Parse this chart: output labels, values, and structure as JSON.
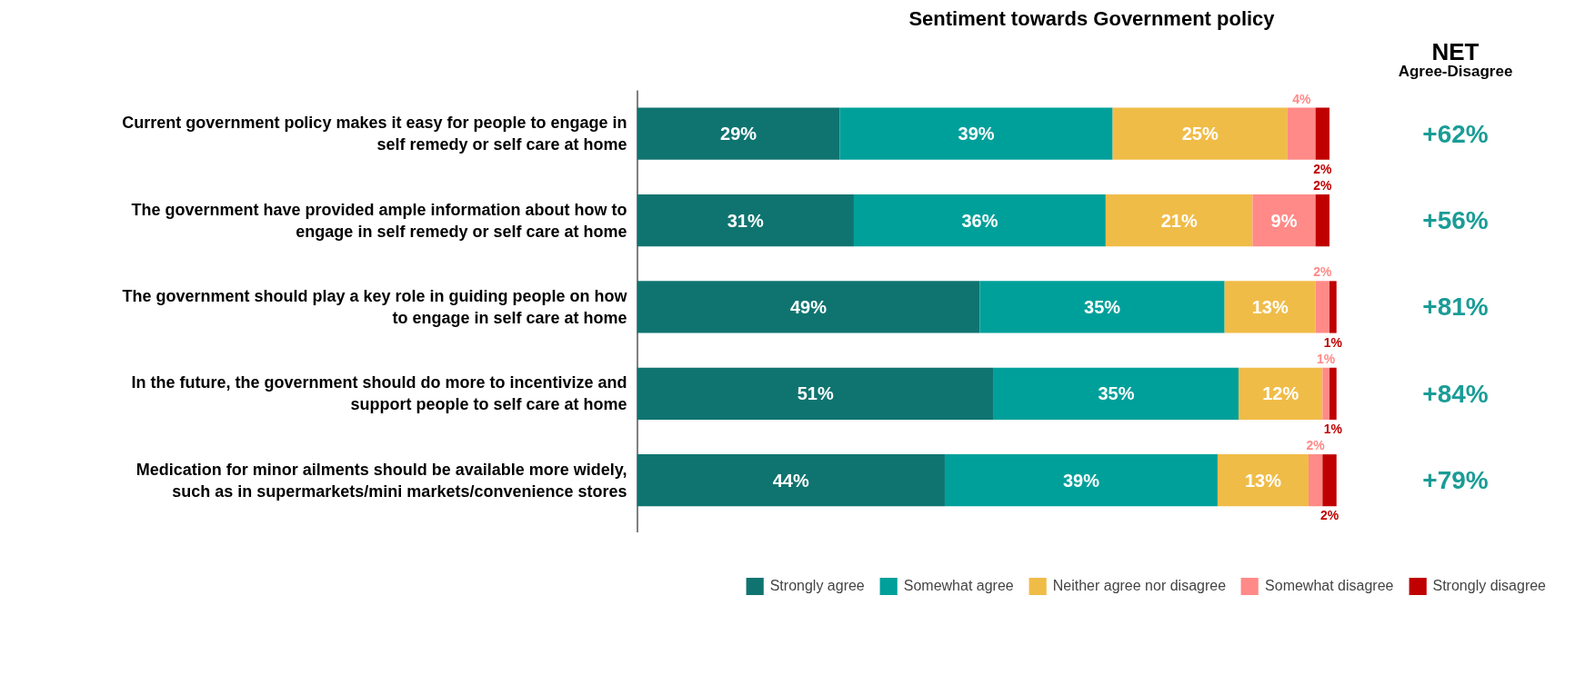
{
  "chart_data": {
    "type": "bar",
    "orientation": "horizontal",
    "stacked": true,
    "title": "Sentiment towards Government policy",
    "categories": [
      "Current government policy makes it easy for people to engage in self remedy or self care at home",
      "The government have provided ample information about how to engage in self remedy or self care at home",
      "The government should play a key role in guiding people on how to engage in self care at home",
      "In the future, the government should do more to incentivize and support people to self care at home",
      "Medication for minor ailments should be available more widely, such as in supermarkets/mini markets/convenience stores"
    ],
    "series": [
      {
        "name": "Strongly agree",
        "color": "#0f7470",
        "values": [
          29,
          31,
          49,
          51,
          44
        ],
        "value_labels": [
          "29%",
          "31%",
          "49%",
          "51%",
          "44%"
        ]
      },
      {
        "name": "Somewhat agree",
        "color": "#00a09a",
        "values": [
          39,
          36,
          35,
          35,
          39
        ],
        "value_labels": [
          "39%",
          "36%",
          "35%",
          "35%",
          "39%"
        ]
      },
      {
        "name": "Neither agree nor disagree",
        "color": "#f0bc48",
        "values": [
          25,
          21,
          13,
          12,
          13
        ],
        "value_labels": [
          "25%",
          "21%",
          "13%",
          "12%",
          "13%"
        ]
      },
      {
        "name": "Somewhat disagree",
        "color": "#ff8a87",
        "values": [
          4,
          9,
          2,
          1,
          2
        ],
        "value_labels": [
          "4%",
          "9%",
          "2%",
          "1%",
          "2%"
        ]
      },
      {
        "name": "Strongly disagree",
        "color": "#c00000",
        "values": [
          2,
          2,
          1,
          1,
          2
        ],
        "value_labels": [
          "2%",
          "2%",
          "1%",
          "1%",
          "2%"
        ]
      }
    ],
    "tick_labels": "y",
    "legend": "bottom",
    "grid": false,
    "annotations": [
      "NET",
      "Agree-Disagree",
      "+62%",
      "+56%",
      "+81%",
      "+84%",
      "+79%"
    ]
  }
}
